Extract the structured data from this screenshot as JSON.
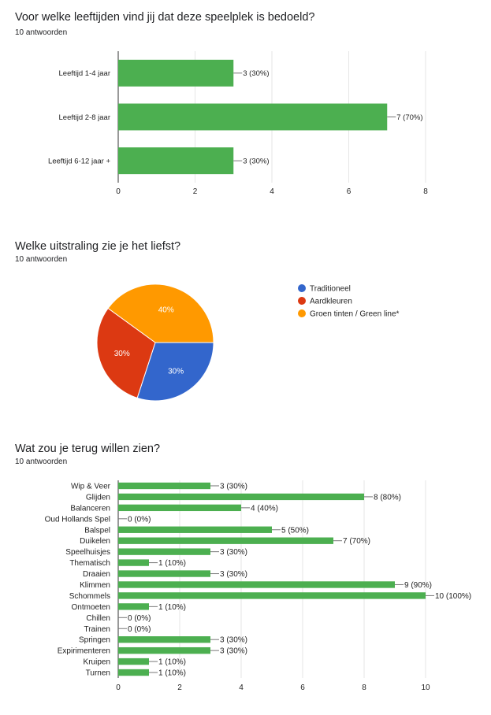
{
  "colors": {
    "bar": "#4caf50",
    "grid": "#e6e6e6",
    "axis": "#333333",
    "text": "#222222",
    "pie": [
      "#3366cc",
      "#dc3912",
      "#ff9900"
    ]
  },
  "questions": [
    {
      "title": "Voor welke leeftijden vind jij dat deze speelplek is bedoeld?",
      "count": "10 antwoorden"
    },
    {
      "title": "Welke uitstraling zie je het liefst?",
      "count": "10 antwoorden"
    },
    {
      "title": "Wat zou je terug willen zien?",
      "count": "10 antwoorden"
    }
  ],
  "chart_data": [
    {
      "type": "bar",
      "orientation": "horizontal",
      "categories": [
        "Leeftijd 1-4 jaar",
        "Leeftijd 2-8 jaar",
        "Leeftijd 6-12 jaar +"
      ],
      "values": [
        3,
        7,
        3
      ],
      "labels": [
        "3 (30%)",
        "7 (70%)",
        "3 (30%)"
      ],
      "xlim": [
        0,
        8
      ],
      "xticks": [
        0,
        2,
        4,
        6,
        8
      ],
      "grid": true
    },
    {
      "type": "pie",
      "categories": [
        "Traditioneel",
        "Aardkleuren",
        "Groen tinten / Green line*"
      ],
      "values": [
        30,
        30,
        40
      ],
      "labels": [
        "30%",
        "30%",
        "40%"
      ],
      "legend": "right"
    },
    {
      "type": "bar",
      "orientation": "horizontal",
      "categories": [
        "Wip & Veer",
        "Glijden",
        "Balanceren",
        "Oud Hollands Spel",
        "Balspel",
        "Duikelen",
        "Speelhuisjes",
        "Thematisch",
        "Draaien",
        "Klimmen",
        "Schommels",
        "Ontmoeten",
        "Chillen",
        "Trainen",
        "Springen",
        "Expirimenteren",
        "Kruipen",
        "Turnen"
      ],
      "values": [
        3,
        8,
        4,
        0,
        5,
        7,
        3,
        1,
        3,
        9,
        10,
        1,
        0,
        0,
        3,
        3,
        1,
        1
      ],
      "labels": [
        "3 (30%)",
        "8 (80%)",
        "4 (40%)",
        "0 (0%)",
        "5 (50%)",
        "7 (70%)",
        "3 (30%)",
        "1 (10%)",
        "3 (30%)",
        "9 (90%)",
        "10 (100%)",
        "1 (10%)",
        "0 (0%)",
        "0 (0%)",
        "3 (30%)",
        "3 (30%)",
        "1 (10%)",
        "1 (10%)"
      ],
      "xlim": [
        0,
        10
      ],
      "xticks": [
        0,
        2,
        4,
        6,
        8,
        10
      ],
      "grid": true
    }
  ]
}
